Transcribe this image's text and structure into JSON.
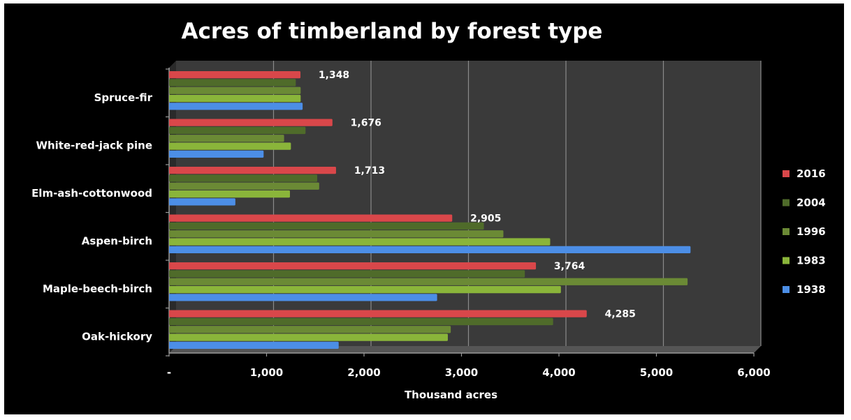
{
  "chart_data": {
    "type": "bar",
    "orientation": "horizontal",
    "title": "Acres of timberland by forest type",
    "xlabel": "Thousand acres",
    "ylabel": "",
    "xlim": [
      0,
      6000
    ],
    "x_ticks": [
      0,
      1000,
      2000,
      3000,
      4000,
      5000,
      6000
    ],
    "x_tick_labels": [
      "-",
      "1,000",
      "2,000",
      "3,000",
      "4,000",
      "5,000",
      "6,000"
    ],
    "grid": true,
    "legend_position": "right",
    "categories": [
      "Spruce-fir",
      "White-red-jack pine",
      "Elm-ash-cottonwood",
      "Aspen-birch",
      "Maple-beech-birch",
      "Oak-hickory"
    ],
    "series": [
      {
        "name": "2016",
        "color": "#d9474a",
        "values": [
          1348,
          1676,
          1713,
          2905,
          3764,
          4285
        ]
      },
      {
        "name": "2004",
        "color": "#4f6b2a",
        "values": [
          1300,
          1400,
          1520,
          3230,
          3650,
          3940
        ]
      },
      {
        "name": "1996",
        "color": "#6b8a35",
        "values": [
          1350,
          1180,
          1540,
          3430,
          5320,
          2890
        ]
      },
      {
        "name": "1983",
        "color": "#8ab53a",
        "values": [
          1350,
          1250,
          1240,
          3910,
          4020,
          2860
        ]
      },
      {
        "name": "1938",
        "color": "#4c8ee6",
        "values": [
          1370,
          970,
          680,
          5350,
          2750,
          1740
        ]
      }
    ],
    "data_labels": {
      "series": "2016",
      "labels": [
        "1,348",
        "1,676",
        "1,713",
        "2,905",
        "3,764",
        "4,285"
      ]
    }
  }
}
